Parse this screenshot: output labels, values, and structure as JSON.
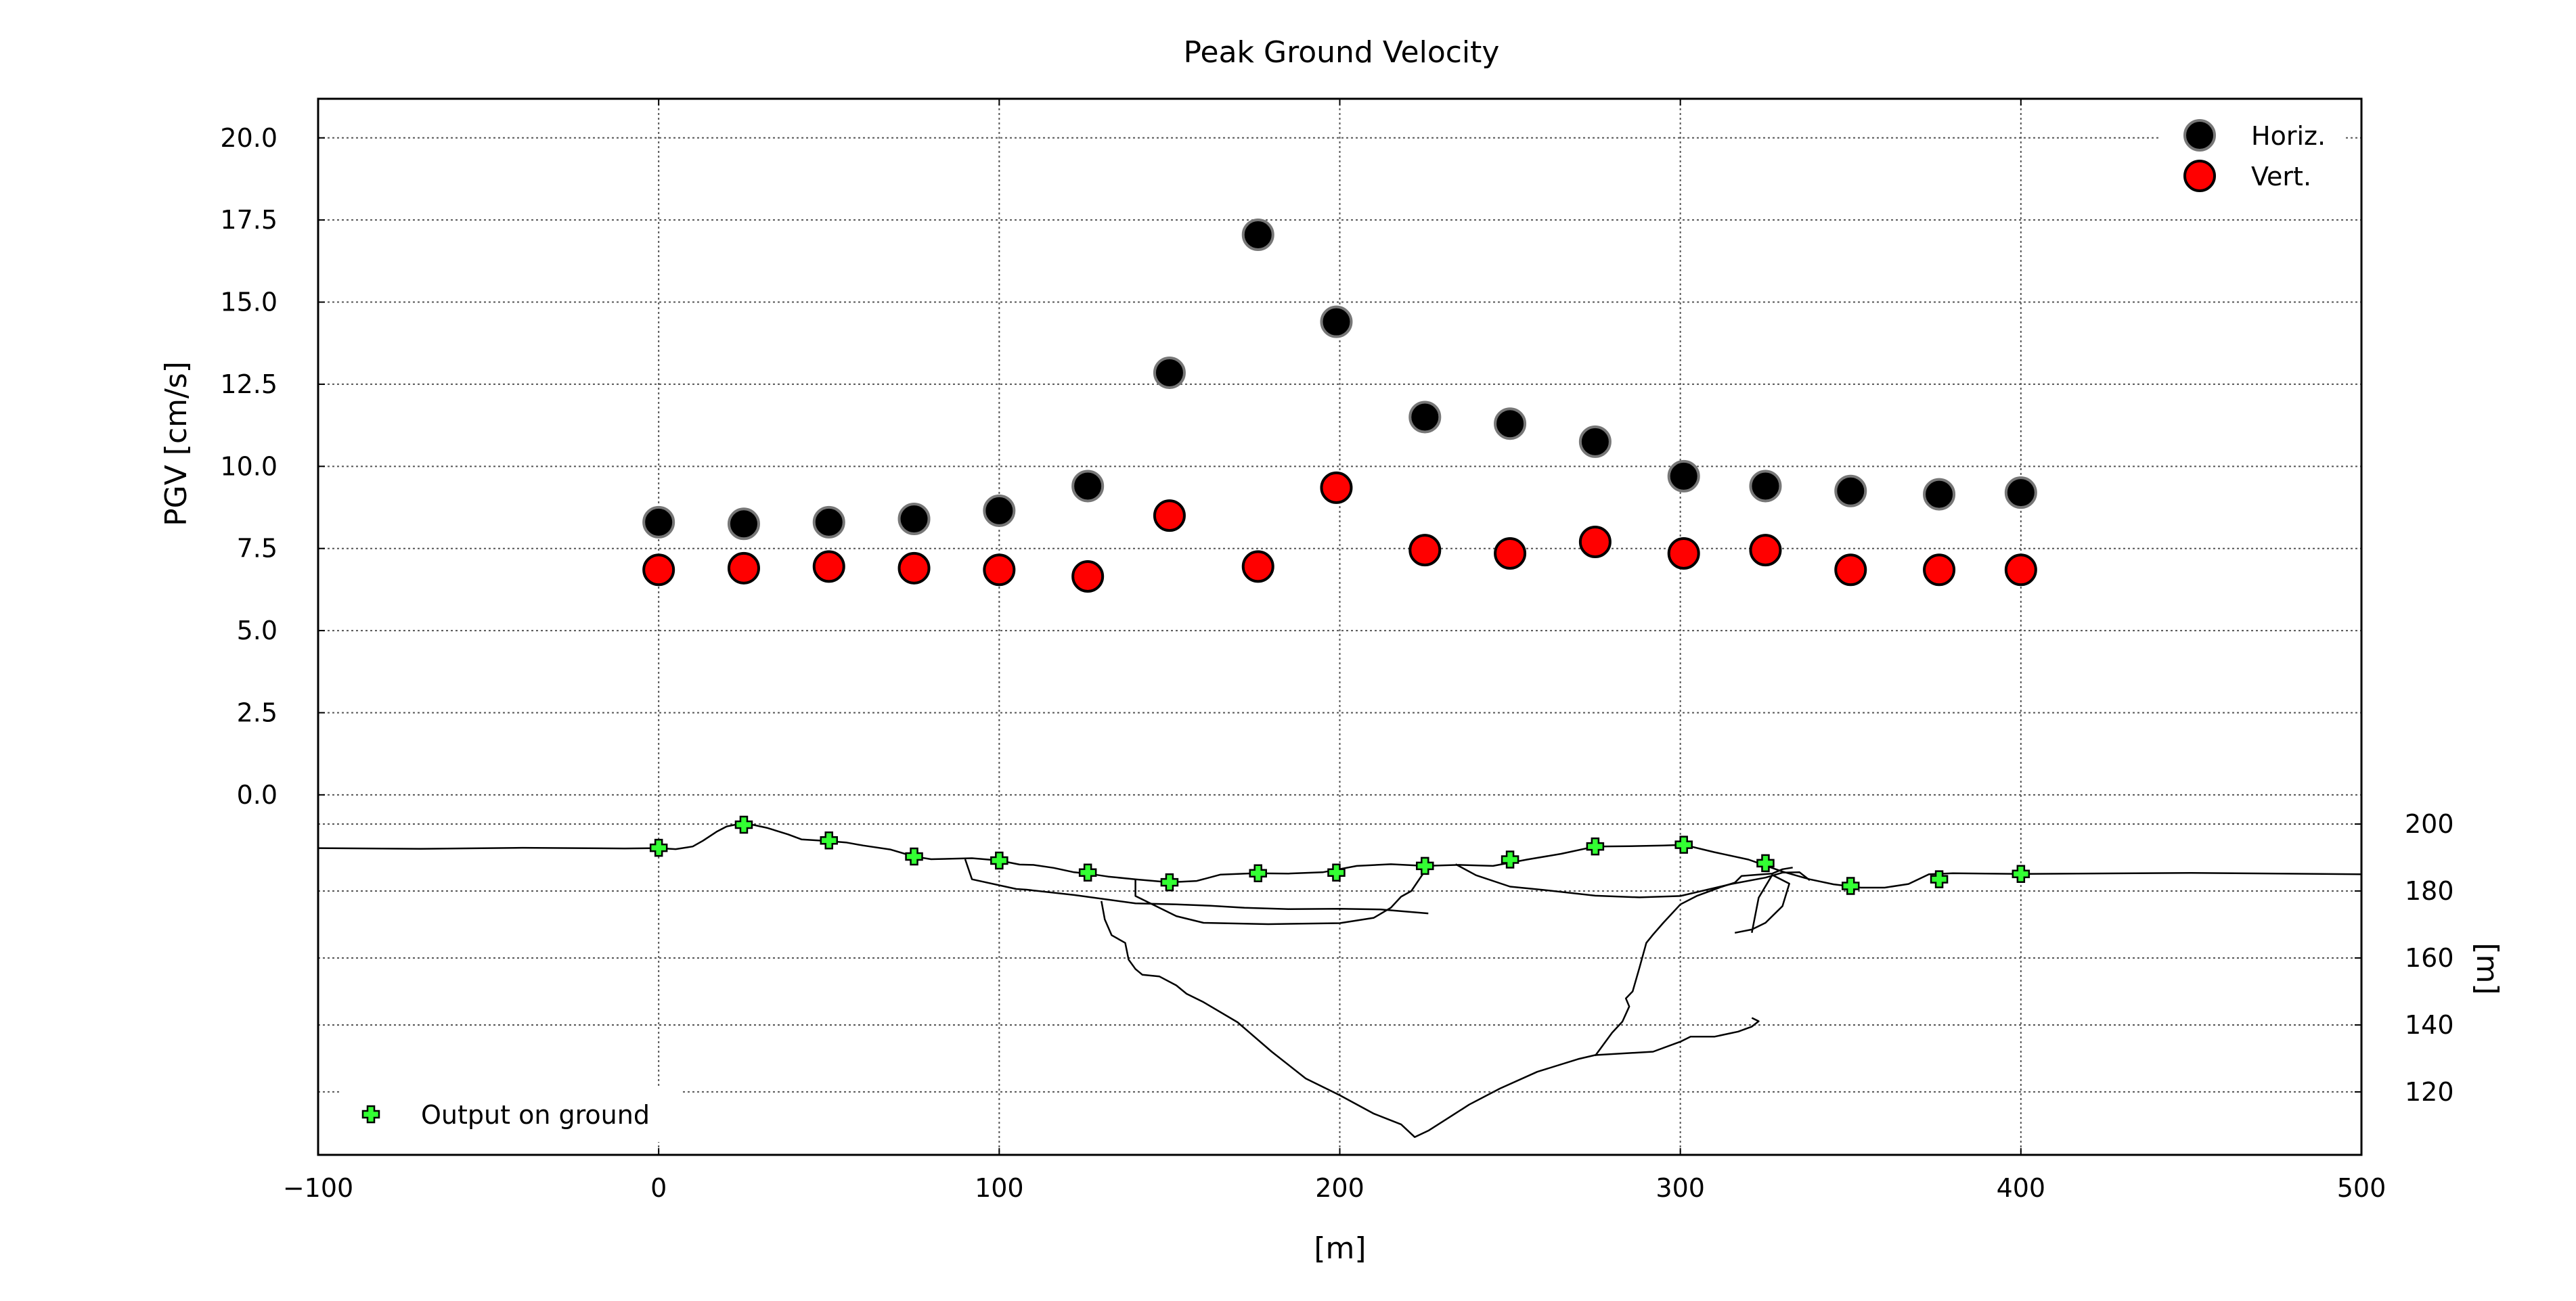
{
  "chart_data": {
    "type": "scatter",
    "title": "Peak Ground Velocity",
    "xlabel": "[m]",
    "ylabel": "PGV [cm/s]",
    "y2label": "[m]",
    "xlim": [
      -100,
      500
    ],
    "xticks": [
      -100,
      0,
      100,
      200,
      300,
      400,
      500
    ],
    "xtick_labels": [
      "−100",
      "0",
      "100",
      "200",
      "300",
      "400",
      "500"
    ],
    "ylim_pgv": [
      -10.96,
      21.19
    ],
    "yticks": [
      0,
      2.5,
      5,
      7.5,
      10,
      12.5,
      15,
      17.5,
      20
    ],
    "ytick_labels": [
      "0.0",
      "2.5",
      "5.0",
      "7.5",
      "10.0",
      "12.5",
      "15.0",
      "17.5",
      "20.0"
    ],
    "ylim_elevation": [
      102,
      200
    ],
    "y2ticks": [
      120,
      140,
      160,
      180,
      200
    ],
    "y2tick_labels": [
      "120",
      "140",
      "160",
      "180",
      "200"
    ],
    "grid": true,
    "legend_placement": "top-right",
    "series": [
      {
        "name": "Horiz.",
        "color": "#000000",
        "edge": "#777777",
        "x": [
          0,
          25,
          50,
          75,
          100,
          126,
          150,
          176,
          199,
          225,
          250,
          275,
          301,
          325,
          350,
          376,
          400
        ],
        "y": [
          8.3,
          8.25,
          8.3,
          8.4,
          8.65,
          9.4,
          12.85,
          17.05,
          14.4,
          11.5,
          11.3,
          10.75,
          9.7,
          9.4,
          9.25,
          9.15,
          9.2
        ]
      },
      {
        "name": "Vert.",
        "color": "#ff0000",
        "edge": "#000000",
        "x": [
          0,
          25,
          50,
          75,
          100,
          126,
          150,
          176,
          199,
          225,
          250,
          275,
          301,
          325,
          350,
          376,
          400
        ],
        "y": [
          6.85,
          6.9,
          6.95,
          6.9,
          6.85,
          6.65,
          8.5,
          6.95,
          9.35,
          7.45,
          7.35,
          7.7,
          7.35,
          7.45,
          6.85,
          6.85,
          6.85
        ]
      }
    ],
    "ground_output": {
      "name": "Output on ground",
      "legend_placement": "bottom-left",
      "color": "#33ff33",
      "x": [
        0,
        25,
        50,
        75,
        100,
        126,
        150,
        176,
        199,
        225,
        250,
        275,
        301,
        325,
        350,
        376,
        400
      ],
      "elevation": [
        192.9,
        199.8,
        195.1,
        190.3,
        189.1,
        185.5,
        182.6,
        185.3,
        185.5,
        187.5,
        189.4,
        193.3,
        193.8,
        188.3,
        181.5,
        183.5,
        185.1
      ]
    },
    "surface_profile": {
      "x": [
        -100,
        -70,
        -40,
        -10,
        0,
        5,
        10,
        13,
        17,
        20,
        23,
        25,
        28,
        32,
        38,
        42,
        50,
        55,
        60,
        68,
        75,
        80,
        92,
        100,
        106,
        110,
        116,
        122,
        126,
        132,
        140,
        150,
        158,
        165,
        175,
        185,
        195,
        205,
        215,
        225,
        235,
        245,
        255,
        265,
        275,
        285,
        295,
        301,
        310,
        320,
        330,
        338,
        345,
        353,
        360,
        367,
        373,
        380,
        400,
        450,
        500
      ],
      "elevation": [
        192.8,
        192.6,
        192.9,
        192.7,
        192.8,
        192.5,
        193.3,
        195.0,
        197.7,
        199.3,
        199.9,
        200.0,
        199.7,
        198.8,
        196.9,
        195.4,
        194.9,
        194.5,
        193.6,
        192.4,
        190.3,
        189.5,
        189.8,
        189.1,
        187.9,
        187.8,
        186.9,
        185.6,
        185.2,
        184.3,
        183.5,
        182.6,
        183.0,
        184.9,
        185.3,
        185.2,
        185.6,
        187.5,
        188.0,
        187.5,
        187.8,
        187.5,
        189.4,
        191.1,
        193.3,
        193.4,
        193.6,
        193.8,
        191.6,
        189.4,
        185.8,
        183.5,
        182.0,
        181.0,
        181.0,
        182.1,
        185.0,
        185.3,
        185.1,
        185.4,
        185.0
      ]
    },
    "subsurface_boundaries": [
      {
        "x": [
          90,
          92,
          105,
          108,
          122,
          140,
          152,
          162,
          172,
          185,
          200,
          212,
          226
        ],
        "elevation": [
          189.5,
          183.5,
          180.6,
          180.4,
          178.8,
          176.3,
          176.0,
          175.6,
          175.0,
          174.6,
          174.7,
          174.5,
          173.3
        ]
      },
      {
        "x": [
          140,
          140,
          152,
          160,
          179,
          200,
          210,
          215,
          218,
          221,
          226
        ],
        "elevation": [
          183.5,
          178.5,
          172.5,
          170.5,
          170.1,
          170.4,
          172.0,
          175.0,
          178.3,
          180.0,
          187.5
        ]
      },
      {
        "x": [
          130,
          131,
          133,
          137,
          138,
          140,
          142,
          147,
          152,
          155,
          160,
          170,
          180,
          190,
          200,
          210,
          218,
          222,
          226,
          234,
          238,
          247,
          258,
          270,
          275,
          292,
          300,
          303,
          310,
          317,
          321,
          323,
          321
        ],
        "elevation": [
          177.0,
          171.5,
          166.8,
          164.5,
          159.5,
          156.7,
          155.0,
          154.5,
          151.8,
          149.3,
          146.8,
          140.8,
          132.0,
          124.0,
          119.0,
          113.5,
          110.3,
          106.5,
          108.4,
          113.6,
          116.2,
          121.0,
          126.0,
          129.8,
          131.0,
          132.0,
          135.0,
          136.5,
          136.5,
          138.0,
          139.5,
          141.1,
          142.1
        ]
      },
      {
        "x": [
          275,
          280,
          283,
          285,
          284,
          286,
          288,
          290,
          292,
          295,
          300,
          305,
          312,
          316,
          318,
          323,
          327,
          330,
          333
        ],
        "elevation": [
          130.8,
          137.7,
          141.0,
          145.5,
          147.9,
          150.0,
          157.1,
          164.5,
          167.0,
          170.5,
          176.0,
          178.6,
          181.2,
          182.5,
          184.5,
          184.9,
          185.2,
          186.5,
          187.0
        ]
      },
      {
        "x": [
          234,
          240,
          250,
          260,
          275,
          288,
          300,
          315,
          325,
          330,
          335,
          338
        ],
        "elevation": [
          188.0,
          184.7,
          181.3,
          180.3,
          178.6,
          178.1,
          178.5,
          182.1,
          184.0,
          185.5,
          185.6,
          183.2
        ]
      },
      {
        "x": [
          316,
          321,
          325,
          330,
          332,
          327,
          323,
          321
        ],
        "elevation": [
          167.5,
          168.5,
          170.5,
          175.5,
          182.2,
          184.8,
          178.0,
          167.5
        ]
      }
    ]
  }
}
